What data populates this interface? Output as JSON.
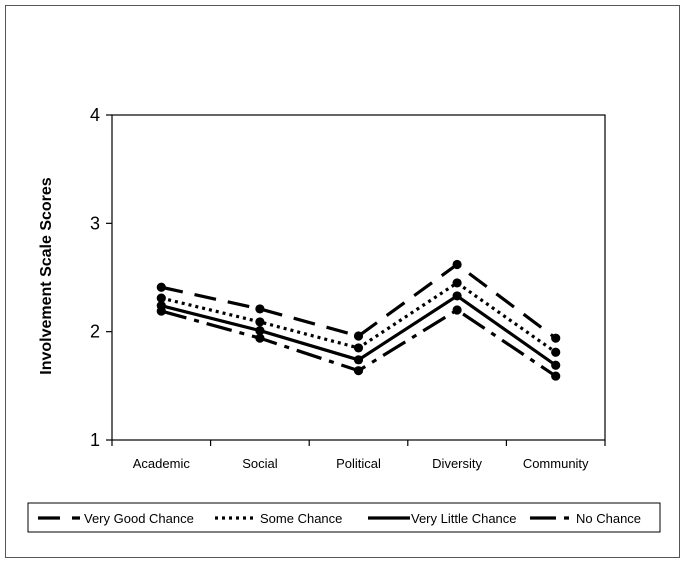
{
  "chart_data": {
    "type": "line",
    "title": "",
    "xlabel": "",
    "ylabel": "Involvement Scale Scores",
    "categories": [
      "Academic",
      "Social",
      "Political",
      "Diversity",
      "Community"
    ],
    "ylim": [
      1,
      4
    ],
    "yticks": [
      1,
      2,
      3,
      4
    ],
    "grid": false,
    "legend_position": "bottom",
    "series": [
      {
        "name": "Very Good Chance",
        "dash": "long-dash",
        "values": [
          2.41,
          2.21,
          1.96,
          2.62,
          1.94
        ]
      },
      {
        "name": "Some Chance",
        "dash": "dotted",
        "values": [
          2.31,
          2.09,
          1.85,
          2.45,
          1.81
        ]
      },
      {
        "name": "Very Little Chance",
        "dash": "solid",
        "values": [
          2.24,
          2.01,
          1.74,
          2.33,
          1.69
        ]
      },
      {
        "name": "No Chance",
        "dash": "dash-dot",
        "values": [
          2.19,
          1.94,
          1.64,
          2.2,
          1.59
        ]
      }
    ]
  }
}
